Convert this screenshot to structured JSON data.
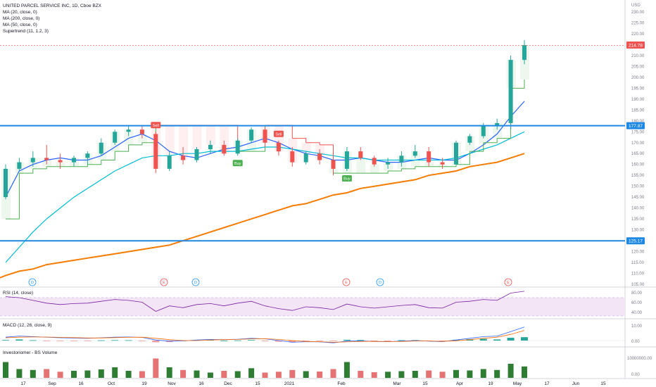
{
  "header": {
    "symbol_title": "UNITED PARCEL SERVICE INC, 1D, Cboe BZX",
    "indicators": [
      "MA (20, close, 0)",
      "MA (200, close, 0)",
      "MA (50, close, 0)",
      "Supertrend (11, 1.2, 3)"
    ]
  },
  "price_axis": {
    "currency": "USD",
    "ticks": [
      "230.00",
      "225.00",
      "220.00",
      "215.00",
      "210.00",
      "205.00",
      "200.00",
      "195.00",
      "190.00",
      "185.00",
      "180.00",
      "175.00",
      "170.00",
      "165.00",
      "160.00",
      "155.00",
      "150.00",
      "145.00",
      "140.00",
      "135.00",
      "130.00",
      "125.00",
      "120.00",
      "115.00",
      "110.00",
      "105.00"
    ]
  },
  "price_labels": {
    "last_price": "214.78",
    "resistance": "177.87",
    "support": "125.17"
  },
  "signal_labels": {
    "sell": "Sell",
    "buy": "Buy"
  },
  "event_markers": [
    "D",
    "E",
    "D",
    "E",
    "D",
    "E"
  ],
  "time_axis": [
    "17",
    "Sep",
    "16",
    "Oct",
    "19",
    "Nov",
    "16",
    "Dec",
    "15",
    "2021",
    "Feb",
    "Mar",
    "15",
    "Apr",
    "19",
    "May",
    "17",
    "Jun",
    "15"
  ],
  "rsi": {
    "title": "RSI (14, close)",
    "ticks": [
      "80.00",
      "60.00",
      "40.00"
    ]
  },
  "macd": {
    "title": "MACD (12, 26, close, 9)",
    "ticks": [
      "10.00",
      "0.00"
    ]
  },
  "volume": {
    "title": "Investonomer - BS Volume",
    "ticks": [
      "10000000.00",
      "0.00"
    ]
  },
  "colors": {
    "up": "#26a69a",
    "down": "#ef5350",
    "ma20": "#2962ff",
    "ma50": "#00bcd4",
    "ma200": "#f57c00",
    "supertrend_up": "#4caf50",
    "supertrend_down": "#ef5350",
    "hline": "#1e88e5",
    "rsi_line": "#7b1fa2",
    "rsi_fill": "#e1bee7",
    "macd": "#2962ff",
    "macd_signal": "#ff6d00"
  },
  "chart_data": {
    "type": "candlestick",
    "title": "UNITED PARCEL SERVICE INC, 1D, Cboe BZX",
    "y_unit": "USD",
    "ylim": [
      102,
      236
    ],
    "horizontal_levels": [
      177.87,
      125.17
    ],
    "last_price": 214.78,
    "ohlc_weekly_approx": [
      {
        "week": "Aug 10",
        "o": 145,
        "h": 160,
        "l": 144,
        "c": 158
      },
      {
        "week": "Aug 17",
        "o": 158,
        "h": 163,
        "l": 157,
        "c": 161
      },
      {
        "week": "Aug 24",
        "o": 161,
        "h": 166,
        "l": 159,
        "c": 163
      },
      {
        "week": "Aug 31",
        "o": 163,
        "h": 169,
        "l": 160,
        "c": 162
      },
      {
        "week": "Sep 8",
        "o": 162,
        "h": 165,
        "l": 158,
        "c": 161
      },
      {
        "week": "Sep 14",
        "o": 161,
        "h": 164,
        "l": 159,
        "c": 163
      },
      {
        "week": "Sep 21",
        "o": 163,
        "h": 166,
        "l": 160,
        "c": 165
      },
      {
        "week": "Sep 28",
        "o": 165,
        "h": 172,
        "l": 164,
        "c": 170
      },
      {
        "week": "Oct 5",
        "o": 170,
        "h": 176,
        "l": 169,
        "c": 175
      },
      {
        "week": "Oct 12",
        "o": 175,
        "h": 178,
        "l": 173,
        "c": 176
      },
      {
        "week": "Oct 19",
        "o": 176,
        "h": 178,
        "l": 172,
        "c": 174
      },
      {
        "week": "Oct 26",
        "o": 174,
        "h": 175,
        "l": 156,
        "c": 158
      },
      {
        "week": "Nov 2",
        "o": 158,
        "h": 166,
        "l": 157,
        "c": 164
      },
      {
        "week": "Nov 9",
        "o": 164,
        "h": 168,
        "l": 160,
        "c": 162
      },
      {
        "week": "Nov 16",
        "o": 162,
        "h": 168,
        "l": 161,
        "c": 167
      },
      {
        "week": "Nov 23",
        "o": 167,
        "h": 171,
        "l": 165,
        "c": 169
      },
      {
        "week": "Nov 30",
        "o": 169,
        "h": 171,
        "l": 164,
        "c": 165
      },
      {
        "week": "Dec 7",
        "o": 165,
        "h": 172,
        "l": 164,
        "c": 171
      },
      {
        "week": "Dec 14",
        "o": 171,
        "h": 177,
        "l": 170,
        "c": 176
      },
      {
        "week": "Dec 21",
        "o": 176,
        "h": 177,
        "l": 168,
        "c": 170
      },
      {
        "week": "Dec 28",
        "o": 170,
        "h": 171,
        "l": 164,
        "c": 166
      },
      {
        "week": "Jan 4",
        "o": 166,
        "h": 168,
        "l": 159,
        "c": 161
      },
      {
        "week": "Jan 11",
        "o": 161,
        "h": 166,
        "l": 160,
        "c": 165
      },
      {
        "week": "Jan 19",
        "o": 165,
        "h": 167,
        "l": 160,
        "c": 162
      },
      {
        "week": "Jan 25",
        "o": 162,
        "h": 164,
        "l": 155,
        "c": 158
      },
      {
        "week": "Feb 1",
        "o": 158,
        "h": 168,
        "l": 157,
        "c": 166
      },
      {
        "week": "Feb 8",
        "o": 166,
        "h": 168,
        "l": 162,
        "c": 163
      },
      {
        "week": "Feb 16",
        "o": 163,
        "h": 164,
        "l": 159,
        "c": 160
      },
      {
        "week": "Feb 22",
        "o": 160,
        "h": 163,
        "l": 158,
        "c": 161
      },
      {
        "week": "Mar 1",
        "o": 161,
        "h": 166,
        "l": 159,
        "c": 164
      },
      {
        "week": "Mar 8",
        "o": 164,
        "h": 169,
        "l": 163,
        "c": 166
      },
      {
        "week": "Mar 15",
        "o": 166,
        "h": 168,
        "l": 159,
        "c": 161
      },
      {
        "week": "Mar 22",
        "o": 161,
        "h": 163,
        "l": 158,
        "c": 160
      },
      {
        "week": "Mar 29",
        "o": 160,
        "h": 171,
        "l": 160,
        "c": 170
      },
      {
        "week": "Apr 5",
        "o": 170,
        "h": 174,
        "l": 169,
        "c": 173
      },
      {
        "week": "Apr 12",
        "o": 173,
        "h": 179,
        "l": 172,
        "c": 178
      },
      {
        "week": "Apr 19",
        "o": 178,
        "h": 181,
        "l": 176,
        "c": 179
      },
      {
        "week": "Apr 26",
        "o": 179,
        "h": 210,
        "l": 176,
        "c": 208
      },
      {
        "week": "May 3",
        "o": 208,
        "h": 217,
        "l": 206,
        "c": 214.78
      }
    ],
    "series": [
      {
        "name": "MA (20, close, 0)",
        "values": [
          145,
          157,
          160,
          162,
          163,
          162,
          162,
          164,
          168,
          172,
          174,
          171,
          166,
          164,
          163,
          165,
          167,
          168,
          170,
          172,
          170,
          167,
          165,
          164,
          162,
          162,
          163,
          162,
          161,
          161,
          162,
          163,
          162,
          162,
          165,
          169,
          174,
          182,
          189
        ]
      },
      {
        "name": "MA (50, close, 0)",
        "values": [
          115,
          122,
          129,
          135,
          140,
          145,
          149,
          153,
          157,
          160,
          163,
          164,
          164,
          165,
          165,
          166,
          166,
          166,
          167,
          168,
          168,
          167,
          166,
          165,
          164,
          163,
          163,
          162,
          162,
          162,
          162,
          162,
          162,
          163,
          165,
          167,
          169,
          172,
          175
        ]
      },
      {
        "name": "MA (200, close, 0)",
        "values": [
          109,
          111,
          112,
          114,
          115,
          116,
          117,
          118,
          119,
          120,
          121,
          122,
          123,
          125,
          127,
          129,
          131,
          133,
          135,
          137,
          139,
          141,
          142,
          144,
          146,
          147,
          149,
          150,
          151,
          152,
          153,
          155,
          156,
          157,
          159,
          160,
          161,
          163,
          165
        ]
      },
      {
        "name": "Supertrend (11, 1.2, 3)",
        "values": [
          135,
          156,
          158,
          159,
          159,
          159,
          160,
          162,
          166,
          169,
          170,
          178,
          178,
          178,
          178,
          178,
          178,
          166,
          166,
          178,
          178,
          172,
          170,
          169,
          156,
          156,
          156,
          156,
          157,
          158,
          159,
          159,
          159,
          160,
          166,
          170,
          172,
          195,
          199
        ]
      }
    ],
    "signals": [
      {
        "type": "Sell",
        "week": "Oct 26"
      },
      {
        "type": "Buy",
        "week": "Dec 7"
      },
      {
        "type": "Sell",
        "week": "Dec 28"
      },
      {
        "type": "Buy",
        "week": "Feb 1"
      }
    ],
    "rsi": {
      "name": "RSI (14, close)",
      "ylim": [
        30,
        90
      ],
      "band": [
        30,
        70
      ],
      "values": [
        72,
        70,
        64,
        58,
        55,
        57,
        58,
        62,
        66,
        64,
        60,
        40,
        52,
        48,
        55,
        57,
        52,
        58,
        62,
        52,
        46,
        42,
        50,
        48,
        44,
        56,
        50,
        47,
        50,
        53,
        55,
        48,
        47,
        60,
        62,
        66,
        64,
        80,
        84
      ]
    },
    "macd": {
      "name": "MACD (12, 26, close, 9)",
      "ylim": [
        -4,
        13
      ],
      "macd": [
        3,
        4,
        3.5,
        3,
        2.5,
        2.2,
        2,
        2.5,
        3,
        3.2,
        2.8,
        0.5,
        -0.5,
        -0.3,
        0.5,
        1,
        0.8,
        1.2,
        2,
        1.5,
        0,
        -1.5,
        -1,
        -1.2,
        -2,
        -0.5,
        -0.3,
        -0.8,
        -1,
        -0.5,
        0,
        -0.5,
        -1,
        0.5,
        2,
        3.5,
        4,
        8,
        12
      ],
      "signal": [
        2.5,
        3,
        3.2,
        3.1,
        2.9,
        2.6,
        2.3,
        2.3,
        2.6,
        2.9,
        3,
        2,
        0.8,
        0,
        0,
        0.5,
        0.8,
        1,
        1.5,
        1.6,
        1,
        0,
        -0.8,
        -1,
        -1.5,
        -1.2,
        -0.8,
        -0.7,
        -0.9,
        -0.8,
        -0.4,
        -0.4,
        -0.7,
        -0.2,
        0.8,
        2,
        3,
        5.5,
        9
      ]
    },
    "volume": {
      "name": "Investonomer - BS Volume",
      "ylim": [
        0,
        14000000
      ],
      "values": [
        9000000,
        5000000,
        4500000,
        5000000,
        3500000,
        4000000,
        4200000,
        4800000,
        6000000,
        4000000,
        3800000,
        11000000,
        6000000,
        4500000,
        4200000,
        3000000,
        4000000,
        3800000,
        5500000,
        3000000,
        3500000,
        4500000,
        3800000,
        3600000,
        5000000,
        9000000,
        4000000,
        3200000,
        3500000,
        3800000,
        4000000,
        4200000,
        3500000,
        4500000,
        4200000,
        5000000,
        4500000,
        8000000,
        6500000
      ],
      "up": [
        true,
        true,
        true,
        false,
        false,
        true,
        true,
        true,
        true,
        true,
        false,
        false,
        true,
        false,
        true,
        true,
        false,
        true,
        true,
        false,
        false,
        false,
        true,
        false,
        false,
        true,
        false,
        false,
        true,
        true,
        true,
        false,
        false,
        true,
        true,
        true,
        true,
        true,
        true
      ]
    }
  }
}
